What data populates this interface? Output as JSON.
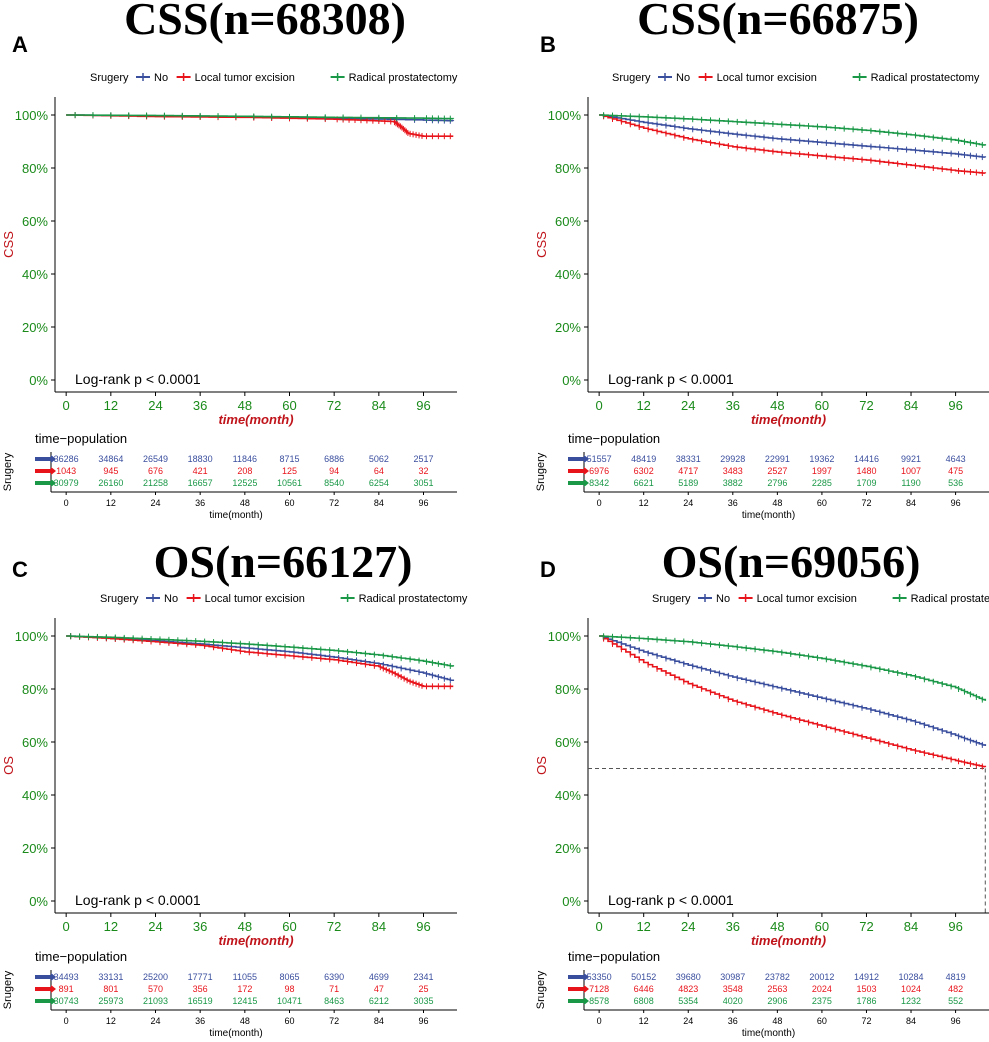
{
  "colors": {
    "no": "#3a4e9e",
    "local": "#e8141b",
    "radical": "#1a9847",
    "axis_text_green": "#1a8a1a",
    "axis_title_red": "#c0141b",
    "grid": "#dddddd",
    "dashed": "#555555"
  },
  "legend": {
    "title": "Srugery",
    "labels": [
      "No",
      "Local tumor excision",
      "Radical prostatectomy"
    ]
  },
  "chart_data": [
    {
      "type": "line",
      "panel_label": "A",
      "title": "CSS(n=68308)",
      "ylabel": "CSS",
      "xlabel": "time(month)",
      "ylim": [
        0,
        100
      ],
      "xlim": [
        -3,
        105
      ],
      "yticks": [
        "0%",
        "20%",
        "40%",
        "60%",
        "80%",
        "100%"
      ],
      "xticks": [
        0,
        12,
        24,
        36,
        48,
        60,
        72,
        84,
        96
      ],
      "annotation": "Log-rank   p < 0.0001",
      "series": [
        {
          "name": "No",
          "x": [
            0,
            24,
            48,
            72,
            96,
            104
          ],
          "y": [
            100,
            99.6,
            99.2,
            98.8,
            98.1,
            97.8
          ]
        },
        {
          "name": "Local tumor excision",
          "x": [
            0,
            24,
            48,
            72,
            80,
            88,
            90,
            92,
            96,
            104
          ],
          "y": [
            100,
            99.4,
            99.1,
            98.4,
            98.0,
            97.5,
            95.5,
            93.0,
            92.0,
            92.0
          ]
        },
        {
          "name": "Radical prostatectomy",
          "x": [
            0,
            24,
            48,
            72,
            96,
            104
          ],
          "y": [
            100,
            99.8,
            99.5,
            99.1,
            98.8,
            98.6
          ]
        }
      ],
      "risk_table": {
        "title": "time−population",
        "ylabel": "Srugery",
        "xlabel": "time(month)",
        "rows": [
          [
            36286,
            34864,
            26549,
            18830,
            11846,
            8715,
            6886,
            5062,
            2517
          ],
          [
            1043,
            945,
            676,
            421,
            208,
            125,
            94,
            64,
            32
          ],
          [
            30979,
            26160,
            21258,
            16657,
            12525,
            10561,
            8540,
            6254,
            3051
          ]
        ]
      }
    },
    {
      "type": "line",
      "panel_label": "B",
      "title": "CSS(n=66875)",
      "ylabel": "CSS",
      "xlabel": "time(month)",
      "ylim": [
        0,
        100
      ],
      "xlim": [
        -3,
        105
      ],
      "yticks": [
        "0%",
        "20%",
        "40%",
        "60%",
        "80%",
        "100%"
      ],
      "xticks": [
        0,
        12,
        24,
        36,
        48,
        60,
        72,
        84,
        96
      ],
      "annotation": "Log-rank   p < 0.0001",
      "series": [
        {
          "name": "No",
          "x": [
            0,
            12,
            24,
            36,
            48,
            60,
            72,
            84,
            96,
            104
          ],
          "y": [
            100,
            97.2,
            94.8,
            92.8,
            91.0,
            89.6,
            88.2,
            86.8,
            85.3,
            84.0
          ]
        },
        {
          "name": "Local tumor excision",
          "x": [
            0,
            12,
            24,
            36,
            48,
            60,
            72,
            84,
            96,
            104
          ],
          "y": [
            100,
            95.0,
            91.0,
            88.0,
            86.0,
            84.5,
            83.0,
            81.0,
            79.0,
            78.0
          ]
        },
        {
          "name": "Radical prostatectomy",
          "x": [
            0,
            12,
            24,
            36,
            48,
            60,
            72,
            84,
            96,
            104
          ],
          "y": [
            100,
            99.3,
            98.5,
            97.5,
            96.5,
            95.5,
            94.2,
            92.5,
            90.5,
            88.5
          ]
        }
      ],
      "risk_table": {
        "title": "time−population",
        "ylabel": "Srugery",
        "xlabel": "time(month)",
        "rows": [
          [
            51557,
            48419,
            38331,
            29928,
            22991,
            19362,
            14416,
            9921,
            4643
          ],
          [
            6976,
            6302,
            4717,
            3483,
            2527,
            1997,
            1480,
            1007,
            475
          ],
          [
            8342,
            6621,
            5189,
            3882,
            2796,
            2285,
            1709,
            1190,
            536
          ]
        ]
      }
    },
    {
      "type": "line",
      "panel_label": "C",
      "title": "OS(n=66127)",
      "ylabel": "OS",
      "xlabel": "time(month)",
      "ylim": [
        0,
        100
      ],
      "xlim": [
        -3,
        105
      ],
      "yticks": [
        "0%",
        "20%",
        "40%",
        "60%",
        "80%",
        "100%"
      ],
      "xticks": [
        0,
        12,
        24,
        36,
        48,
        60,
        72,
        84,
        96
      ],
      "annotation": "Log-rank   p < 0.0001",
      "series": [
        {
          "name": "No",
          "x": [
            0,
            12,
            24,
            36,
            48,
            60,
            72,
            84,
            96,
            104
          ],
          "y": [
            100,
            99.2,
            98.2,
            97.0,
            95.5,
            94.0,
            92.0,
            89.5,
            86.0,
            83.0
          ]
        },
        {
          "name": "Local tumor excision",
          "x": [
            0,
            12,
            24,
            36,
            48,
            60,
            72,
            84,
            88,
            92,
            96,
            104
          ],
          "y": [
            100,
            99.0,
            97.8,
            96.5,
            94.0,
            92.5,
            91.0,
            88.5,
            86.0,
            83.0,
            81.0,
            81.0
          ]
        },
        {
          "name": "Radical prostatectomy",
          "x": [
            0,
            12,
            24,
            36,
            48,
            60,
            72,
            84,
            96,
            104
          ],
          "y": [
            100,
            99.5,
            98.8,
            98.0,
            97.0,
            95.8,
            94.5,
            92.8,
            90.5,
            88.5
          ]
        }
      ],
      "risk_table": {
        "title": "time−population",
        "ylabel": "Srugery",
        "xlabel": "time(month)",
        "rows": [
          [
            34493,
            33131,
            25200,
            17771,
            11055,
            8065,
            6390,
            4699,
            2341
          ],
          [
            891,
            801,
            570,
            356,
            172,
            98,
            71,
            47,
            25
          ],
          [
            30743,
            25973,
            21093,
            16519,
            12415,
            10471,
            8463,
            6212,
            3035
          ]
        ]
      }
    },
    {
      "type": "line",
      "panel_label": "D",
      "title": "OS(n=69056)",
      "ylabel": "OS",
      "xlabel": "time(month)",
      "ylim": [
        0,
        100
      ],
      "xlim": [
        -3,
        105
      ],
      "yticks": [
        "0%",
        "20%",
        "40%",
        "60%",
        "80%",
        "100%"
      ],
      "xticks": [
        0,
        12,
        24,
        36,
        48,
        60,
        72,
        84,
        96
      ],
      "annotation": "Log-rank   p < 0.0001",
      "median_line": {
        "y": 50,
        "x": 104
      },
      "series": [
        {
          "name": "No",
          "x": [
            0,
            12,
            24,
            36,
            48,
            60,
            72,
            84,
            96,
            104
          ],
          "y": [
            100,
            94.0,
            89.0,
            84.5,
            80.5,
            76.5,
            72.5,
            68.0,
            62.5,
            58.5
          ]
        },
        {
          "name": "Local tumor excision",
          "x": [
            0,
            12,
            24,
            36,
            48,
            60,
            72,
            84,
            96,
            104
          ],
          "y": [
            100,
            90.0,
            82.0,
            75.5,
            70.5,
            66.0,
            61.5,
            57.0,
            53.0,
            50.5
          ]
        },
        {
          "name": "Radical prostatectomy",
          "x": [
            0,
            12,
            24,
            36,
            48,
            60,
            72,
            84,
            96,
            104
          ],
          "y": [
            100,
            99.0,
            97.8,
            96.0,
            94.0,
            91.5,
            88.5,
            85.0,
            80.5,
            75.5
          ]
        }
      ],
      "risk_table": {
        "title": "time−population",
        "ylabel": "Srugery",
        "xlabel": "time(month)",
        "rows": [
          [
            53350,
            50152,
            39680,
            30987,
            23782,
            20012,
            14912,
            10284,
            4819
          ],
          [
            7128,
            6446,
            4823,
            3548,
            2563,
            2024,
            1503,
            1024,
            482
          ],
          [
            8578,
            6808,
            5354,
            4020,
            2906,
            2375,
            1786,
            1232,
            552
          ]
        ]
      }
    }
  ]
}
